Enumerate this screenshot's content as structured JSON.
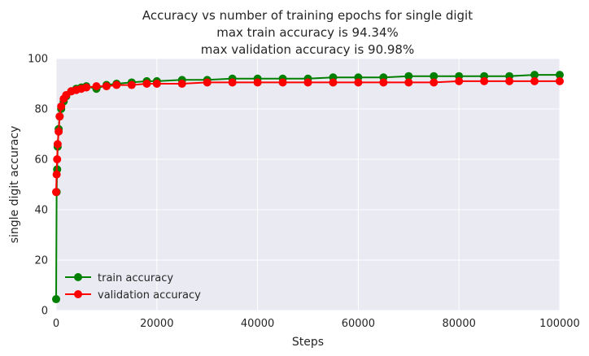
{
  "chart_data": {
    "type": "line",
    "title": [
      "Accuracy vs number of training epochs for single digit",
      "max train accuracy is 94.34%",
      "max validation accuracy is 90.98%"
    ],
    "xlabel": "Steps",
    "ylabel": "single digit accuracy",
    "xlim": [
      0,
      100000
    ],
    "ylim": [
      0,
      100
    ],
    "x_ticks": [
      0,
      20000,
      40000,
      60000,
      80000,
      100000
    ],
    "y_ticks": [
      0,
      20,
      40,
      60,
      80,
      100
    ],
    "grid": true,
    "legend_position": "lower-left",
    "colors": {
      "plot_background": "#EAEAF2",
      "grid": "#FFFFFF",
      "train": "#008000",
      "validation": "#FF0000"
    },
    "series": [
      {
        "name": "train accuracy",
        "color": "#008000",
        "marker": "circle",
        "x": [
          0,
          100,
          200,
          300,
          500,
          700,
          1000,
          1500,
          2000,
          3000,
          4000,
          5000,
          6000,
          8000,
          10000,
          12000,
          15000,
          18000,
          20000,
          25000,
          30000,
          35000,
          40000,
          45000,
          50000,
          55000,
          60000,
          65000,
          70000,
          75000,
          80000,
          85000,
          90000,
          95000,
          100000
        ],
        "values": [
          4.5,
          47,
          56,
          65,
          72,
          77,
          80,
          83,
          85,
          87,
          88,
          88.5,
          89,
          88,
          89.5,
          90,
          90.5,
          91,
          91,
          91.5,
          91.5,
          92,
          92,
          92,
          92,
          92.5,
          92.5,
          92.5,
          93,
          93,
          93,
          93,
          93,
          93.5,
          93.5
        ]
      },
      {
        "name": "validation accuracy",
        "color": "#FF0000",
        "marker": "circle",
        "x": [
          0,
          100,
          200,
          300,
          500,
          700,
          1000,
          1500,
          2000,
          3000,
          4000,
          5000,
          6000,
          8000,
          10000,
          12000,
          15000,
          18000,
          20000,
          25000,
          30000,
          35000,
          40000,
          45000,
          50000,
          55000,
          60000,
          65000,
          70000,
          75000,
          80000,
          85000,
          90000,
          95000,
          100000
        ],
        "values": [
          47,
          54,
          60,
          66,
          71,
          77,
          81,
          84,
          85.5,
          87,
          87.5,
          88,
          88.5,
          89,
          89,
          89.5,
          89.5,
          90,
          90,
          90,
          90.5,
          90.5,
          90.5,
          90.5,
          90.5,
          90.5,
          90.5,
          90.5,
          90.5,
          90.5,
          91,
          91,
          91,
          91,
          91
        ]
      }
    ]
  }
}
